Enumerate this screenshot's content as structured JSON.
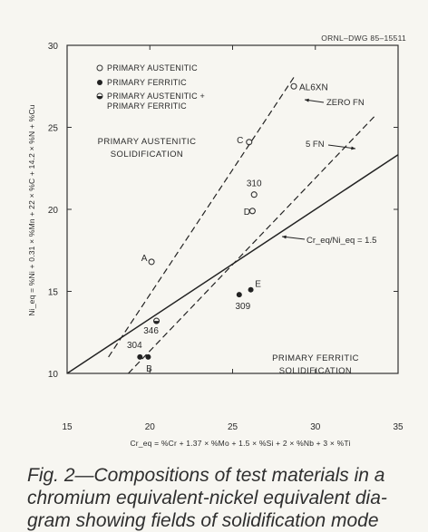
{
  "figure": {
    "drawing_id": "ORNL–DWG 85–15511"
  },
  "chart_data": {
    "type": "scatter",
    "xlabel": "Cr_eq = %Cr + 1.37 × %Mo + 1.5 × %Si + 2 × %Nb + 3 × %Ti",
    "ylabel": "Ni_eq = %Ni + 0.31 × %Mn + 22 × %C + 14.2 × %N + %Cu",
    "xlim": [
      15,
      35
    ],
    "ylim": [
      10,
      30
    ],
    "x_ticks": [
      "15",
      "20",
      "25",
      "30",
      "35"
    ],
    "y_ticks": [
      "10",
      "15",
      "20",
      "25",
      "30"
    ],
    "grid": false,
    "legend": [
      {
        "marker": "open",
        "label": "PRIMARY AUSTENITIC"
      },
      {
        "marker": "filled",
        "label": "PRIMARY FERRITIC"
      },
      {
        "marker": "half",
        "label": "PRIMARY AUSTENITIC +",
        "label2": "PRIMARY FERRITIC"
      }
    ],
    "region_labels": [
      {
        "line1": "PRIMARY AUSTENITIC",
        "line2": "SOLIDIFICATION"
      },
      {
        "line1": "PRIMARY FERRITIC",
        "line2": "SOLIDIFICATION"
      }
    ],
    "lines": [
      {
        "name": "Cr_eq/Ni_eq = 1.5",
        "style": "solid",
        "x": [
          15,
          35
        ],
        "y": [
          10,
          23.33
        ]
      },
      {
        "name": "ZERO FN",
        "style": "dashed",
        "x": [
          17.5,
          28.8
        ],
        "y": [
          11.0,
          28.2
        ]
      },
      {
        "name": "5 FN",
        "style": "dashed",
        "x": [
          18.7,
          33.7
        ],
        "y": [
          10.0,
          25.8
        ]
      }
    ],
    "points": [
      {
        "label": "AL6XN",
        "x": 28.7,
        "y": 27.5,
        "type": "open"
      },
      {
        "label": "C",
        "x": 26.0,
        "y": 24.1,
        "type": "open"
      },
      {
        "label": "310",
        "x": 26.3,
        "y": 20.9,
        "type": "open"
      },
      {
        "label": "D",
        "x": 26.2,
        "y": 19.9,
        "type": "open"
      },
      {
        "label": "A",
        "x": 20.1,
        "y": 16.8,
        "type": "open"
      },
      {
        "label": "E",
        "x": 26.1,
        "y": 15.1,
        "type": "filled"
      },
      {
        "label": "309",
        "x": 25.4,
        "y": 14.8,
        "type": "filled"
      },
      {
        "label": "346",
        "x": 20.4,
        "y": 13.2,
        "type": "half"
      },
      {
        "label": "304",
        "x": 19.4,
        "y": 11.0,
        "type": "filled"
      },
      {
        "label": "B",
        "x": 19.9,
        "y": 11.0,
        "type": "filled"
      }
    ]
  },
  "caption": {
    "line1": "Fig. 2—Compositions of test materials in a",
    "line2": "chromium equivalent-nickel equivalent dia-",
    "line3": "gram showing fields of solidification mode"
  }
}
